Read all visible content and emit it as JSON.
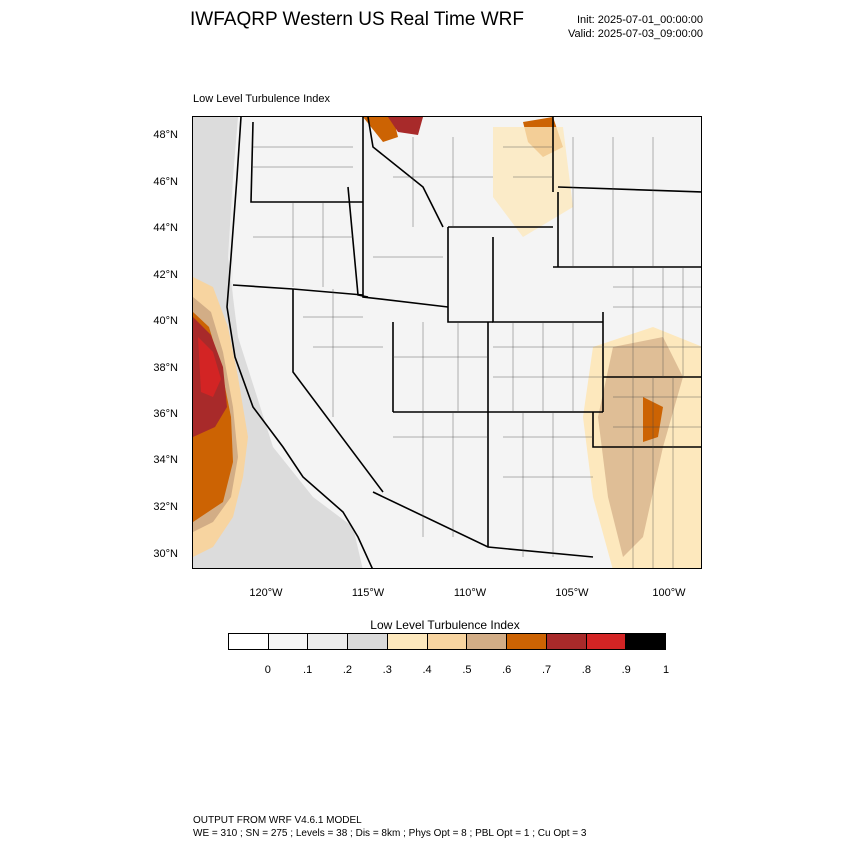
{
  "header": {
    "title": "IWFAQRP Western US Real Time WRF",
    "init": "Init: 2025-07-01_00:00:00",
    "valid": "Valid: 2025-07-03_09:00:00"
  },
  "plot": {
    "label": "Low Level Turbulence Index",
    "lat_ticks": [
      "48°N",
      "46°N",
      "44°N",
      "42°N",
      "40°N",
      "38°N",
      "36°N",
      "34°N",
      "32°N",
      "30°N"
    ],
    "lon_ticks": [
      "120°W",
      "115°W",
      "110°W",
      "105°W",
      "100°W"
    ]
  },
  "colorbar": {
    "title": "Low Level Turbulence Index",
    "labels": [
      "0",
      ".1",
      ".2",
      ".3",
      ".4",
      ".5",
      ".6",
      ".7",
      ".8",
      ".9",
      "1"
    ],
    "colors": [
      "#ffffff",
      "#f6f6f6",
      "#ececec",
      "#dadada",
      "#fde8bd",
      "#f7d4a0",
      "#d2ad86",
      "#cc6303",
      "#a82a2a",
      "#d32424",
      "#000000"
    ]
  },
  "footer": {
    "line1": "OUTPUT FROM WRF V4.6.1 MODEL",
    "line2": "WE = 310 ; SN = 275 ; Levels = 38 ; Dis = 8km ; Phys Opt = 8 ; PBL Opt = 1 ; Cu Opt = 3"
  }
}
